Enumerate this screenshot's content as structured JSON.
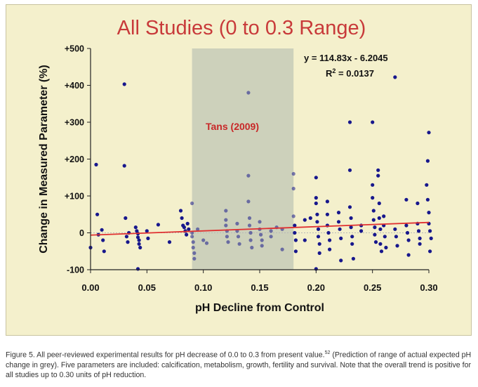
{
  "caption": {
    "text": "Figure 5. All peer-reviewed experimental results for pH decrease of 0.0 to 0.3 from present value.",
    "ref": "52",
    "text2": " (Prediction of range of actual expected pH change in grey). Five parameters are included: calcification, metabolism, growth, fertility and survival. Note that the overall trend is positive for all studies up to 0.30 units of pH reduction."
  },
  "chart_data": {
    "type": "scatter",
    "title": "All Studies (0 to 0.3 Range)",
    "xlabel": "pH Decline from Control",
    "ylabel": "Change in Measured Parameter (%)",
    "xlim": [
      0,
      0.3
    ],
    "ylim": [
      -100,
      500
    ],
    "xticks": [
      "0.00",
      "0.05",
      "0.10",
      "0.15",
      "0.20",
      "0.25",
      "0.30"
    ],
    "yticks": [
      "-100",
      "0",
      "+100",
      "+200",
      "+300",
      "+400",
      "+500"
    ],
    "grid": false,
    "highlight_band": {
      "x": [
        0.09,
        0.18
      ],
      "label": "Tans (2009)"
    },
    "trendline": {
      "slope": 114.83,
      "intercept": -6.2045
    },
    "equation": "y = 114.83x - 6.2045",
    "r2_prefix": "R",
    "r2_value": " = 0.0137",
    "colors": {
      "band": "#c9cdb9",
      "marker": "#17178c",
      "trend": "#e03030",
      "title": "#c83a3a",
      "annotation": "#c82828"
    },
    "points": [
      {
        "x": 0.0,
        "y": -40
      },
      {
        "x": 0.005,
        "y": 185
      },
      {
        "x": 0.006,
        "y": 50
      },
      {
        "x": 0.007,
        "y": -5
      },
      {
        "x": 0.01,
        "y": 8
      },
      {
        "x": 0.011,
        "y": -20
      },
      {
        "x": 0.012,
        "y": -50
      },
      {
        "x": 0.03,
        "y": 403
      },
      {
        "x": 0.03,
        "y": 182
      },
      {
        "x": 0.031,
        "y": 40
      },
      {
        "x": 0.032,
        "y": -10
      },
      {
        "x": 0.033,
        "y": -25
      },
      {
        "x": 0.034,
        "y": 0
      },
      {
        "x": 0.04,
        "y": 15
      },
      {
        "x": 0.041,
        "y": 5
      },
      {
        "x": 0.042,
        "y": -2
      },
      {
        "x": 0.042,
        "y": -12
      },
      {
        "x": 0.043,
        "y": -20
      },
      {
        "x": 0.043,
        "y": -30
      },
      {
        "x": 0.044,
        "y": -40
      },
      {
        "x": 0.042,
        "y": -98
      },
      {
        "x": 0.05,
        "y": 5
      },
      {
        "x": 0.051,
        "y": -15
      },
      {
        "x": 0.06,
        "y": 22
      },
      {
        "x": 0.07,
        "y": -25
      },
      {
        "x": 0.08,
        "y": 60
      },
      {
        "x": 0.081,
        "y": 40
      },
      {
        "x": 0.082,
        "y": 20
      },
      {
        "x": 0.083,
        "y": 15
      },
      {
        "x": 0.084,
        "y": 5
      },
      {
        "x": 0.085,
        "y": -5
      },
      {
        "x": 0.086,
        "y": 25
      },
      {
        "x": 0.087,
        "y": 10
      },
      {
        "x": 0.09,
        "y": 80
      },
      {
        "x": 0.09,
        "y": 0
      },
      {
        "x": 0.09,
        "y": -10
      },
      {
        "x": 0.091,
        "y": -25
      },
      {
        "x": 0.091,
        "y": -40
      },
      {
        "x": 0.092,
        "y": -55
      },
      {
        "x": 0.092,
        "y": -70
      },
      {
        "x": 0.095,
        "y": 10
      },
      {
        "x": 0.1,
        "y": -20
      },
      {
        "x": 0.103,
        "y": -28
      },
      {
        "x": 0.12,
        "y": 60
      },
      {
        "x": 0.12,
        "y": 35
      },
      {
        "x": 0.12,
        "y": 20
      },
      {
        "x": 0.121,
        "y": 5
      },
      {
        "x": 0.121,
        "y": -10
      },
      {
        "x": 0.122,
        "y": -25
      },
      {
        "x": 0.13,
        "y": 25
      },
      {
        "x": 0.13,
        "y": 5
      },
      {
        "x": 0.131,
        "y": -10
      },
      {
        "x": 0.132,
        "y": -30
      },
      {
        "x": 0.14,
        "y": 380
      },
      {
        "x": 0.14,
        "y": 155
      },
      {
        "x": 0.14,
        "y": 85
      },
      {
        "x": 0.141,
        "y": 40
      },
      {
        "x": 0.141,
        "y": 20
      },
      {
        "x": 0.142,
        "y": 0
      },
      {
        "x": 0.142,
        "y": -20
      },
      {
        "x": 0.143,
        "y": -40
      },
      {
        "x": 0.15,
        "y": 30
      },
      {
        "x": 0.15,
        "y": 10
      },
      {
        "x": 0.151,
        "y": -5
      },
      {
        "x": 0.152,
        "y": -20
      },
      {
        "x": 0.152,
        "y": -35
      },
      {
        "x": 0.16,
        "y": 5
      },
      {
        "x": 0.16,
        "y": -10
      },
      {
        "x": 0.165,
        "y": 15
      },
      {
        "x": 0.17,
        "y": 10
      },
      {
        "x": 0.17,
        "y": -45
      },
      {
        "x": 0.18,
        "y": 160
      },
      {
        "x": 0.18,
        "y": 120
      },
      {
        "x": 0.18,
        "y": 45
      },
      {
        "x": 0.181,
        "y": 20
      },
      {
        "x": 0.181,
        "y": 0
      },
      {
        "x": 0.182,
        "y": -20
      },
      {
        "x": 0.182,
        "y": -50
      },
      {
        "x": 0.19,
        "y": 35
      },
      {
        "x": 0.19,
        "y": -20
      },
      {
        "x": 0.195,
        "y": 40
      },
      {
        "x": 0.2,
        "y": 150
      },
      {
        "x": 0.2,
        "y": 95
      },
      {
        "x": 0.2,
        "y": 80
      },
      {
        "x": 0.201,
        "y": 50
      },
      {
        "x": 0.201,
        "y": 30
      },
      {
        "x": 0.202,
        "y": 10
      },
      {
        "x": 0.202,
        "y": -10
      },
      {
        "x": 0.203,
        "y": -30
      },
      {
        "x": 0.203,
        "y": -55
      },
      {
        "x": 0.2,
        "y": -98
      },
      {
        "x": 0.21,
        "y": 85
      },
      {
        "x": 0.21,
        "y": 50
      },
      {
        "x": 0.21,
        "y": 20
      },
      {
        "x": 0.211,
        "y": 0
      },
      {
        "x": 0.212,
        "y": -20
      },
      {
        "x": 0.212,
        "y": -45
      },
      {
        "x": 0.22,
        "y": 55
      },
      {
        "x": 0.22,
        "y": 30
      },
      {
        "x": 0.221,
        "y": 10
      },
      {
        "x": 0.222,
        "y": -15
      },
      {
        "x": 0.222,
        "y": -75
      },
      {
        "x": 0.23,
        "y": 300
      },
      {
        "x": 0.23,
        "y": 170
      },
      {
        "x": 0.23,
        "y": 70
      },
      {
        "x": 0.231,
        "y": 40
      },
      {
        "x": 0.231,
        "y": 15
      },
      {
        "x": 0.232,
        "y": -10
      },
      {
        "x": 0.232,
        "y": -30
      },
      {
        "x": 0.233,
        "y": -70
      },
      {
        "x": 0.24,
        "y": 20
      },
      {
        "x": 0.24,
        "y": 5
      },
      {
        "x": 0.25,
        "y": 300
      },
      {
        "x": 0.25,
        "y": 130
      },
      {
        "x": 0.25,
        "y": 95
      },
      {
        "x": 0.251,
        "y": 60
      },
      {
        "x": 0.251,
        "y": 35
      },
      {
        "x": 0.252,
        "y": 15
      },
      {
        "x": 0.252,
        "y": -5
      },
      {
        "x": 0.253,
        "y": -25
      },
      {
        "x": 0.255,
        "y": 170
      },
      {
        "x": 0.255,
        "y": 155
      },
      {
        "x": 0.256,
        "y": 80
      },
      {
        "x": 0.256,
        "y": 40
      },
      {
        "x": 0.257,
        "y": 10
      },
      {
        "x": 0.257,
        "y": -30
      },
      {
        "x": 0.258,
        "y": -50
      },
      {
        "x": 0.26,
        "y": 45
      },
      {
        "x": 0.26,
        "y": 20
      },
      {
        "x": 0.261,
        "y": -10
      },
      {
        "x": 0.262,
        "y": -40
      },
      {
        "x": 0.27,
        "y": 422
      },
      {
        "x": 0.27,
        "y": 10
      },
      {
        "x": 0.271,
        "y": -10
      },
      {
        "x": 0.272,
        "y": -35
      },
      {
        "x": 0.28,
        "y": 90
      },
      {
        "x": 0.28,
        "y": 20
      },
      {
        "x": 0.281,
        "y": 0
      },
      {
        "x": 0.282,
        "y": -20
      },
      {
        "x": 0.282,
        "y": -60
      },
      {
        "x": 0.29,
        "y": 80
      },
      {
        "x": 0.29,
        "y": 25
      },
      {
        "x": 0.291,
        "y": 5
      },
      {
        "x": 0.292,
        "y": -15
      },
      {
        "x": 0.292,
        "y": -30
      },
      {
        "x": 0.3,
        "y": 272
      },
      {
        "x": 0.299,
        "y": 195
      },
      {
        "x": 0.298,
        "y": 130
      },
      {
        "x": 0.299,
        "y": 90
      },
      {
        "x": 0.3,
        "y": 55
      },
      {
        "x": 0.3,
        "y": 25
      },
      {
        "x": 0.301,
        "y": 5
      },
      {
        "x": 0.302,
        "y": -15
      },
      {
        "x": 0.301,
        "y": -50
      }
    ]
  }
}
